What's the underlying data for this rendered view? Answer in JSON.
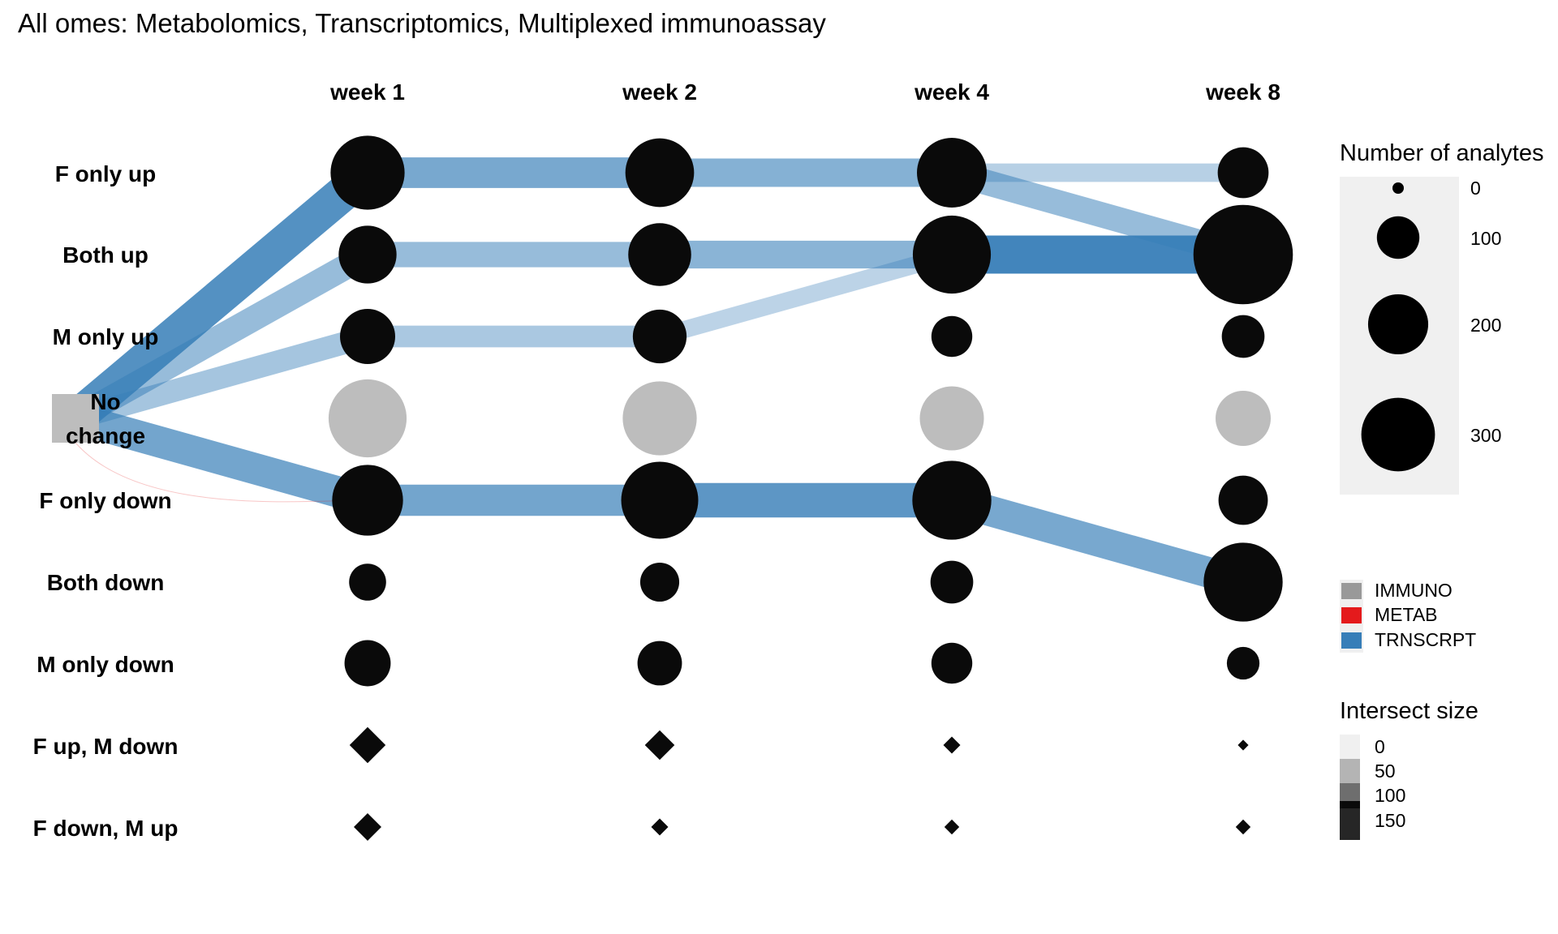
{
  "chart_data": {
    "type": "alluvial",
    "title": "All omes: Metabolomics, Transcriptomics, Multiplexed immunoassay",
    "timepoints": [
      "week 1",
      "week 2",
      "week 4",
      "week 8"
    ],
    "states": [
      "F only up",
      "Both up",
      "M only up",
      "No change",
      "F only down",
      "Both down",
      "M only down",
      "F up, M down",
      "F down, M up"
    ],
    "origin_label": [
      "No",
      "change"
    ],
    "node_sizes": {
      "week 1": {
        "F only up": 180,
        "Both up": 110,
        "M only up": 100,
        "No change": 200,
        "F only down": 165,
        "Both down": 45,
        "M only down": 70,
        "F up, M down": 14,
        "F down, M up": 10
      },
      "week 2": {
        "F only up": 155,
        "Both up": 130,
        "M only up": 95,
        "No change": 180,
        "F only down": 195,
        "Both down": 50,
        "M only down": 65,
        "F up, M down": 11,
        "F down, M up": 5
      },
      "week 4": {
        "F only up": 160,
        "Both up": 200,
        "M only up": 55,
        "No change": 135,
        "F only down": 205,
        "Both down": 60,
        "M only down": 55,
        "F up, M down": 5,
        "F down, M up": 4
      },
      "week 8": {
        "F only up": 85,
        "Both up": 325,
        "M only up": 60,
        "No change": 100,
        "F only down": 80,
        "Both down": 205,
        "M only down": 35,
        "F up, M down": 2,
        "F down, M up": 4
      }
    },
    "flows": [
      {
        "from": [
          "origin",
          "No change"
        ],
        "to": [
          "week 1",
          "F only up"
        ],
        "size": 150,
        "ome": "TRNSCRPT"
      },
      {
        "from": [
          "origin",
          "No change"
        ],
        "to": [
          "week 1",
          "Both up"
        ],
        "size": 75,
        "ome": "TRNSCRPT"
      },
      {
        "from": [
          "origin",
          "No change"
        ],
        "to": [
          "week 1",
          "M only up"
        ],
        "size": 60,
        "ome": "TRNSCRPT"
      },
      {
        "from": [
          "origin",
          "No change"
        ],
        "to": [
          "week 1",
          "F only down"
        ],
        "size": 115,
        "ome": "TRNSCRPT"
      },
      {
        "from": [
          "origin",
          "No change"
        ],
        "to": [
          "week 1",
          "F only down"
        ],
        "size": 1,
        "ome": "METAB"
      },
      {
        "from": [
          "week 1",
          "F only up"
        ],
        "to": [
          "week 2",
          "F only up"
        ],
        "size": 110,
        "ome": "TRNSCRPT"
      },
      {
        "from": [
          "week 1",
          "Both up"
        ],
        "to": [
          "week 2",
          "Both up"
        ],
        "size": 75,
        "ome": "TRNSCRPT"
      },
      {
        "from": [
          "week 1",
          "M only up"
        ],
        "to": [
          "week 2",
          "M only up"
        ],
        "size": 55,
        "ome": "TRNSCRPT"
      },
      {
        "from": [
          "week 1",
          "F only down"
        ],
        "to": [
          "week 2",
          "F only down"
        ],
        "size": 115,
        "ome": "TRNSCRPT"
      },
      {
        "from": [
          "week 2",
          "F only up"
        ],
        "to": [
          "week 4",
          "F only up"
        ],
        "size": 95,
        "ome": "TRNSCRPT"
      },
      {
        "from": [
          "week 2",
          "Both up"
        ],
        "to": [
          "week 4",
          "Both up"
        ],
        "size": 90,
        "ome": "TRNSCRPT"
      },
      {
        "from": [
          "week 2",
          "M only up"
        ],
        "to": [
          "week 4",
          "Both up"
        ],
        "size": 35,
        "ome": "TRNSCRPT"
      },
      {
        "from": [
          "week 2",
          "F only down"
        ],
        "to": [
          "week 4",
          "F only down"
        ],
        "size": 140,
        "ome": "TRNSCRPT"
      },
      {
        "from": [
          "week 4",
          "F only up"
        ],
        "to": [
          "week 8",
          "F only up"
        ],
        "size": 40,
        "ome": "TRNSCRPT"
      },
      {
        "from": [
          "week 4",
          "F only up"
        ],
        "to": [
          "week 8",
          "Both up"
        ],
        "size": 75,
        "ome": "TRNSCRPT"
      },
      {
        "from": [
          "week 4",
          "Both up"
        ],
        "to": [
          "week 8",
          "Both up"
        ],
        "size": 170,
        "ome": "TRNSCRPT"
      },
      {
        "from": [
          "week 4",
          "F only down"
        ],
        "to": [
          "week 8",
          "Both down"
        ],
        "size": 110,
        "ome": "TRNSCRPT"
      }
    ],
    "legend_size": {
      "title": "Number of analytes",
      "values": [
        0,
        100,
        200,
        300
      ],
      "labels": [
        "0",
        "100",
        "200",
        "300"
      ]
    },
    "legend_ome": {
      "items": [
        {
          "label": "IMMUNO",
          "color": "#999999"
        },
        {
          "label": "METAB",
          "color": "#e41a1c"
        },
        {
          "label": "TRNSCRPT",
          "color": "#377eb8"
        }
      ]
    },
    "legend_intersect": {
      "title": "Intersect size",
      "values": [
        0,
        50,
        100,
        150
      ],
      "labels": [
        "0",
        "50",
        "100",
        "150"
      ]
    },
    "colors": {
      "node": "#0a0a0a",
      "no_change_node": "#bdbdbd",
      "origin_node": "#bdbdbd",
      "flow": "#377eb8",
      "legend_panel": "#f0f0f0"
    }
  }
}
